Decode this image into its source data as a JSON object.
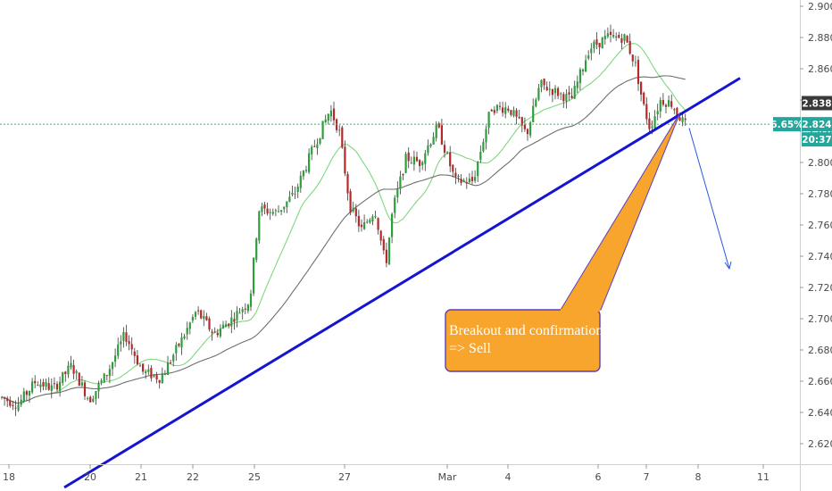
{
  "chart_data": {
    "type": "candlestick",
    "x_ticks": [
      "18",
      "20",
      "21",
      "22",
      "25",
      "27",
      "Mar",
      "4",
      "6",
      "7",
      "8",
      "11"
    ],
    "y_ticks": [
      "2.900",
      "2.880",
      "2.860",
      "2.840",
      "2.820",
      "2.800",
      "2.780",
      "2.760",
      "2.740",
      "2.720",
      "2.700",
      "2.680",
      "2.660",
      "2.640",
      "2.620"
    ],
    "ylim": [
      2.6115,
      2.9035
    ],
    "grid": false,
    "price_labels": [
      {
        "text": "2.838",
        "color": "#3a3a3a"
      },
      {
        "text": "6.65%",
        "color": "#26a69a"
      },
      {
        "text": "2.824",
        "color": "#26a69a"
      },
      {
        "text": "20:37",
        "color": "#26a69a"
      }
    ],
    "current_price": 2.8245,
    "prev_close": 2.838,
    "trendline": {
      "from": {
        "x": "18",
        "y": 2.592
      },
      "to": {
        "x": "8",
        "y": 2.854
      },
      "color": "#1414d2"
    },
    "forecast_arrow": {
      "from": {
        "x": "8",
        "y": 2.822
      },
      "to": {
        "x": "8",
        "y": 2.732
      },
      "color": "#2a55e0"
    },
    "callout": {
      "lines": [
        "Breakout and confirmation",
        "=> Sell"
      ],
      "fill": "#f7a52c",
      "border": "#5a3fc0"
    },
    "moving_averages": [
      {
        "color": "#7ed87e"
      },
      {
        "color": "#6f6f6f"
      }
    ],
    "colors": {
      "up": "#2e9e3c",
      "down": "#b22a2a",
      "wick": "#3a3a3a"
    }
  }
}
